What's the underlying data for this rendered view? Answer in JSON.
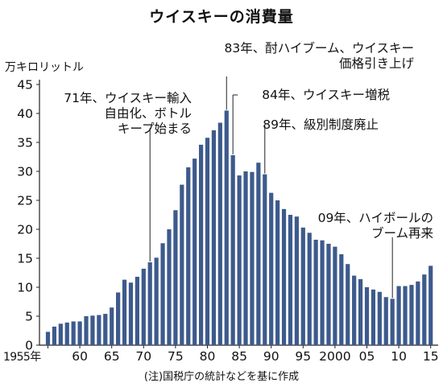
{
  "chart_data": {
    "type": "bar",
    "title": "ウイスキーの消費量",
    "ylabel": "万キロリットル",
    "note": "(注)国税庁の統計などを基に作成",
    "ylim": [
      0,
      45
    ],
    "yticks": [
      0,
      5,
      10,
      15,
      20,
      25,
      30,
      35,
      40,
      45
    ],
    "xticks": [
      {
        "year": 1955,
        "label": "1955年"
      },
      {
        "year": 1960,
        "label": "60"
      },
      {
        "year": 1965,
        "label": "65"
      },
      {
        "year": 1970,
        "label": "70"
      },
      {
        "year": 1975,
        "label": "75"
      },
      {
        "year": 1980,
        "label": "80"
      },
      {
        "year": 1985,
        "label": "85"
      },
      {
        "year": 1990,
        "label": "90"
      },
      {
        "year": 1995,
        "label": "95"
      },
      {
        "year": 2000,
        "label": "2000"
      },
      {
        "year": 2005,
        "label": "05"
      },
      {
        "year": 2010,
        "label": "10"
      },
      {
        "year": 2015,
        "label": "15"
      }
    ],
    "grid": false,
    "bar_color": "#3d5a8c",
    "x": [
      1955,
      1956,
      1957,
      1958,
      1959,
      1960,
      1961,
      1962,
      1963,
      1964,
      1965,
      1966,
      1967,
      1968,
      1969,
      1970,
      1971,
      1972,
      1973,
      1974,
      1975,
      1976,
      1977,
      1978,
      1979,
      1980,
      1981,
      1982,
      1983,
      1984,
      1985,
      1986,
      1987,
      1988,
      1989,
      1990,
      1991,
      1992,
      1993,
      1994,
      1995,
      1996,
      1997,
      1998,
      1999,
      2000,
      2001,
      2002,
      2003,
      2004,
      2005,
      2006,
      2007,
      2008,
      2009,
      2010,
      2011,
      2012,
      2013,
      2014,
      2015
    ],
    "values": [
      2.3,
      3.2,
      3.7,
      3.9,
      4.1,
      4.1,
      5.0,
      5.1,
      5.2,
      5.4,
      6.5,
      9.1,
      11.3,
      10.8,
      11.8,
      13.2,
      14.3,
      15.1,
      17.6,
      20.0,
      23.3,
      27.7,
      30.7,
      32.2,
      34.6,
      35.8,
      37.1,
      38.4,
      40.5,
      32.8,
      29.3,
      30.0,
      29.9,
      31.5,
      29.5,
      26.3,
      25.0,
      23.5,
      22.5,
      22.2,
      20.3,
      19.4,
      18.2,
      18.1,
      17.5,
      17.0,
      15.7,
      14.0,
      12.0,
      11.4,
      10.0,
      9.6,
      9.2,
      8.3,
      8.0,
      10.2,
      10.2,
      10.4,
      11.0,
      12.2,
      13.7
    ],
    "annotations": [
      {
        "year": 1971,
        "text": "71年、ウイスキー輸入\n自由化、ボトル\nキープ始まる"
      },
      {
        "year": 1983,
        "text": "83年、酎ハイブーム、ウイスキー\n価格引き上げ"
      },
      {
        "year": 1984,
        "text": "84年、ウイスキー増税"
      },
      {
        "year": 1989,
        "text": "89年、級別制度廃止"
      },
      {
        "year": 2009,
        "text": "09年、ハイボールの\nブーム再来"
      }
    ]
  }
}
